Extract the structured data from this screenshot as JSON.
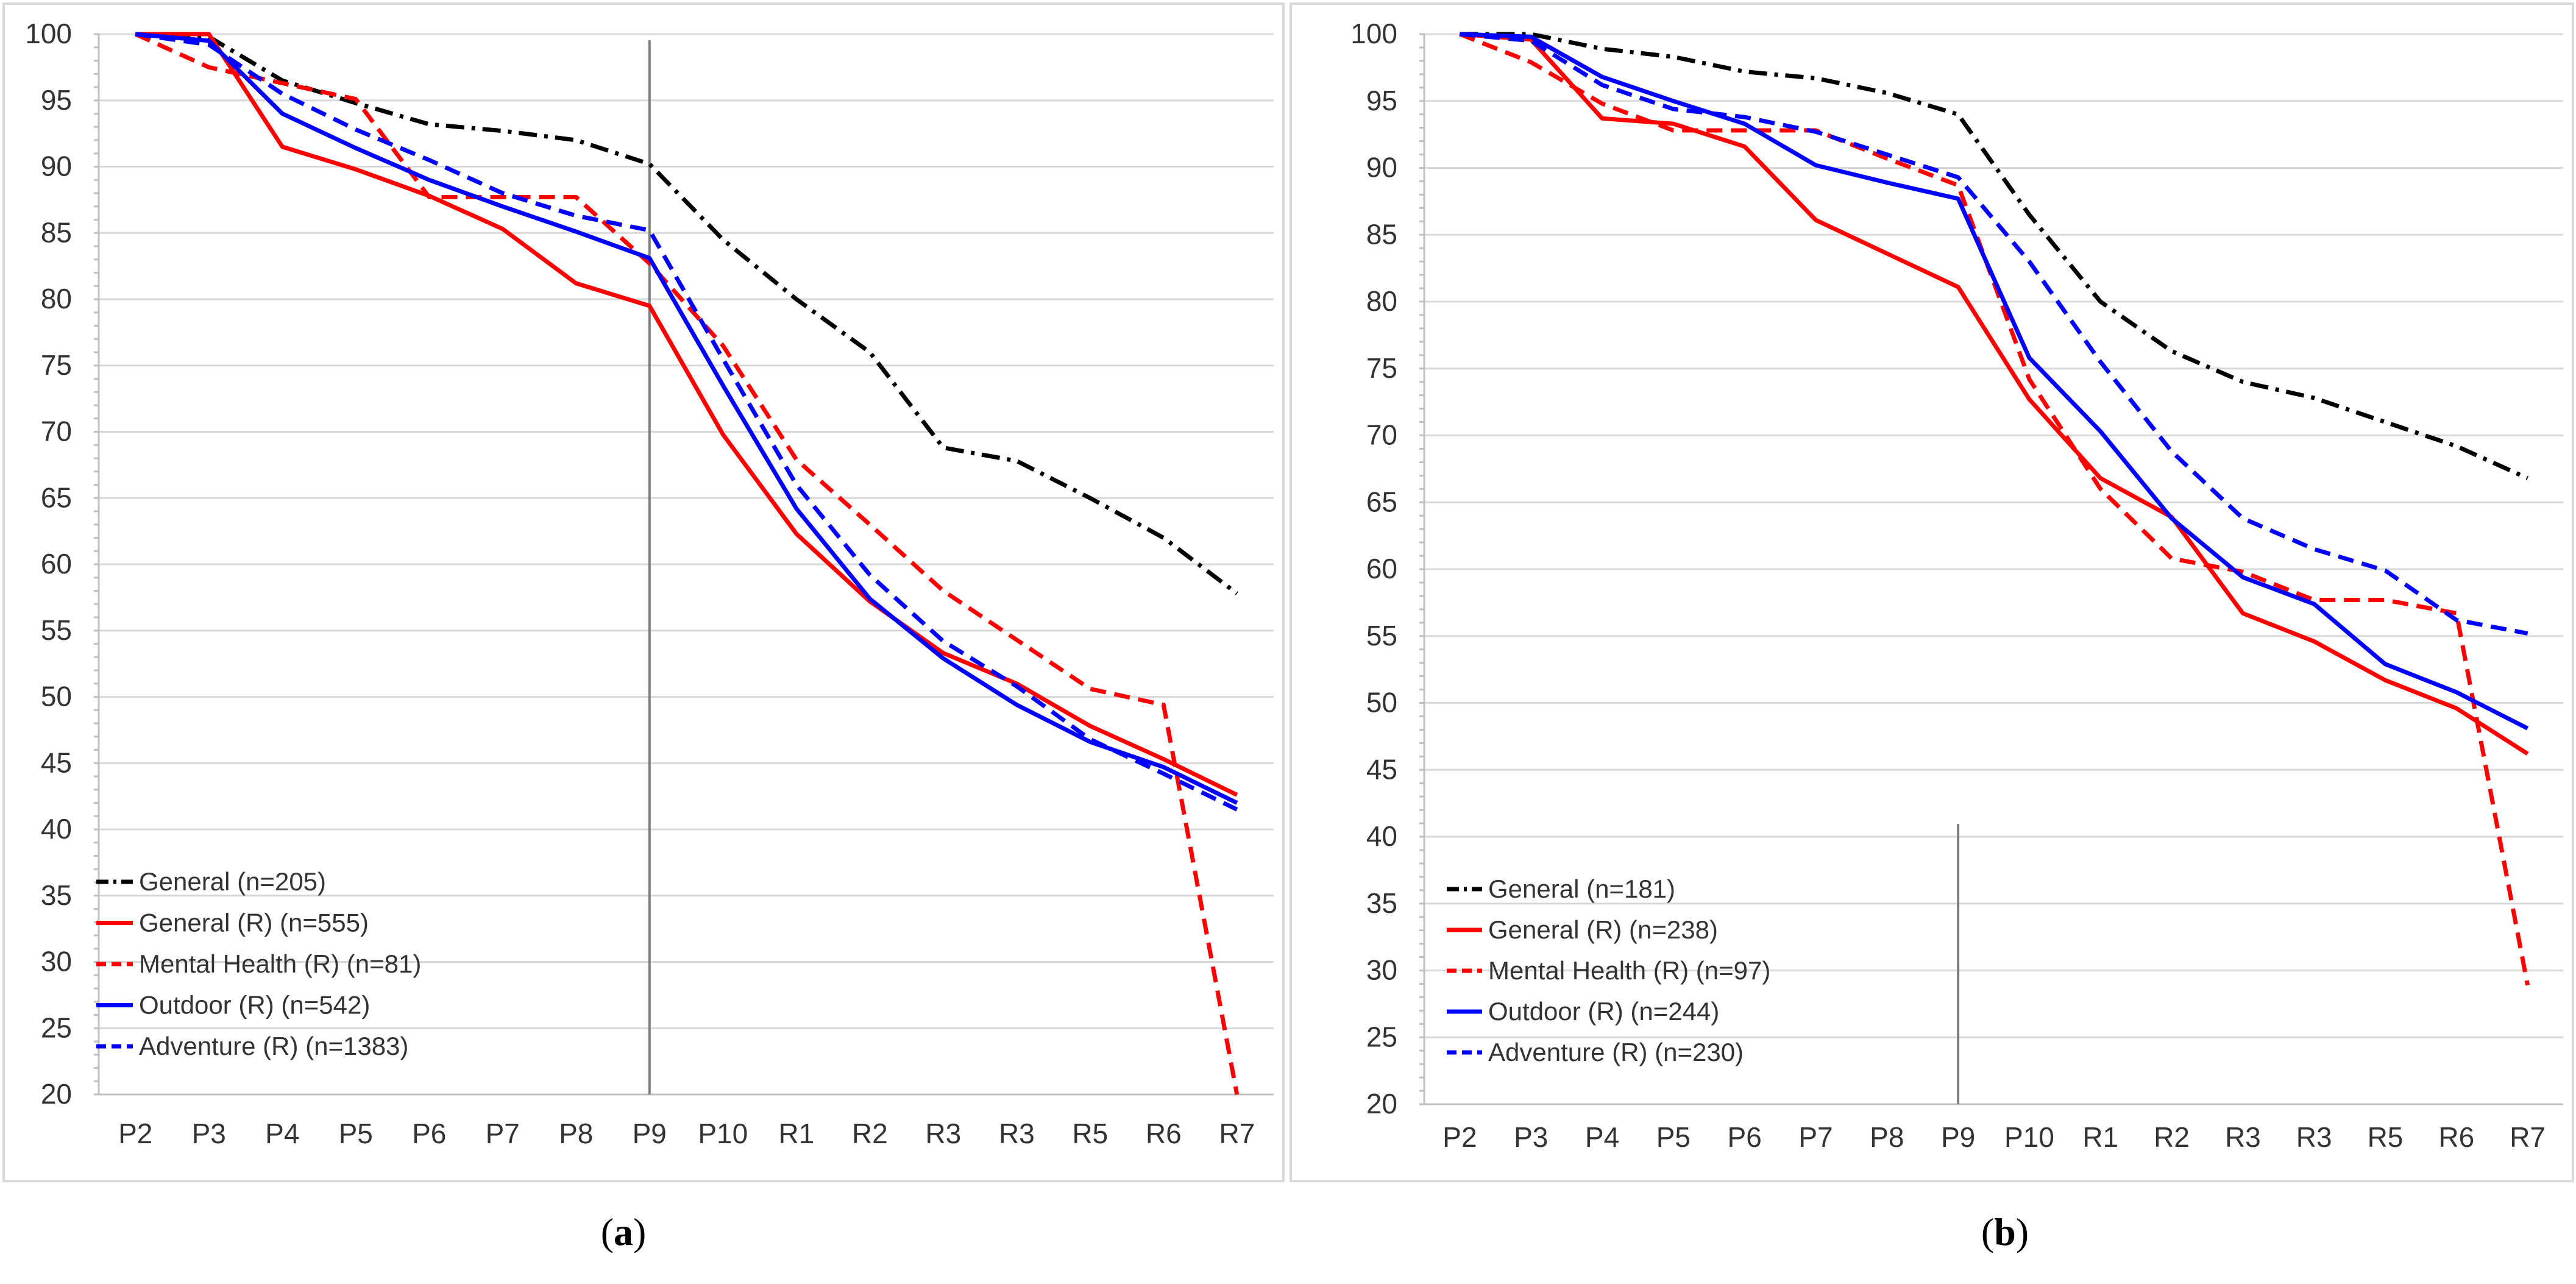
{
  "colors": {
    "black": "#000000",
    "red": "#ff0000",
    "blue": "#0000ff"
  },
  "chart_data": [
    {
      "type": "line",
      "panel_label": "a",
      "categories": [
        "P2",
        "P3",
        "P4",
        "P5",
        "P6",
        "P7",
        "P8",
        "P9",
        "P10",
        "R1",
        "R2",
        "R3",
        "R3",
        "R5",
        "R6",
        "R7"
      ],
      "ylim": [
        20,
        100
      ],
      "yticks": [
        20,
        25,
        30,
        35,
        40,
        45,
        50,
        55,
        60,
        65,
        70,
        75,
        80,
        85,
        90,
        95,
        100
      ],
      "vertical_marker_category_index": 7,
      "legend_position": "lower-left",
      "series": [
        {
          "name": "General (n=205)",
          "color": "#000000",
          "dash": "dashdot",
          "values": [
            100,
            99.8,
            96.5,
            94.8,
            93.2,
            92.7,
            92.0,
            90.2,
            84.5,
            80.0,
            76.0,
            68.8,
            67.8,
            65.0,
            62.0,
            57.8
          ]
        },
        {
          "name": "General (R)  (n=555)",
          "color": "#ff0000",
          "dash": "solid",
          "values": [
            100,
            100,
            91.5,
            89.8,
            87.8,
            85.3,
            81.2,
            79.5,
            69.8,
            62.3,
            57.2,
            53.3,
            51.0,
            47.8,
            45.3,
            42.6
          ]
        },
        {
          "name": "Mental Health (R)  (n=81)",
          "color": "#ff0000",
          "dash": "dashed",
          "values": [
            100,
            97.5,
            96.3,
            95.1,
            87.7,
            87.7,
            87.7,
            82.7,
            76.5,
            67.9,
            63.0,
            58.0,
            54.3,
            50.6,
            49.4,
            19.8
          ]
        },
        {
          "name": "Outdoor (R)  (n=542)",
          "color": "#0000ff",
          "dash": "solid",
          "values": [
            100,
            99.5,
            94.0,
            91.4,
            89.0,
            87.0,
            85.1,
            83.1,
            73.5,
            64.2,
            57.4,
            52.9,
            49.4,
            46.6,
            44.7,
            42.0
          ]
        },
        {
          "name": "Adventure (R)  (n=1383)",
          "color": "#0000ff",
          "dash": "dashed",
          "values": [
            100,
            99.2,
            95.5,
            92.8,
            90.5,
            88.0,
            86.3,
            85.2,
            75.5,
            66.0,
            59.2,
            54.2,
            50.8,
            46.8,
            44.2,
            41.5
          ]
        }
      ]
    },
    {
      "type": "line",
      "panel_label": "b",
      "categories": [
        "P2",
        "P3",
        "P4",
        "P5",
        "P6",
        "P7",
        "P8",
        "P9",
        "P10",
        "R1",
        "R2",
        "R3",
        "R3",
        "R5",
        "R6",
        "R7"
      ],
      "ylim": [
        20,
        100
      ],
      "yticks": [
        20,
        25,
        30,
        35,
        40,
        45,
        50,
        55,
        60,
        65,
        70,
        75,
        80,
        85,
        90,
        95,
        100
      ],
      "vertical_marker_category_index": 7,
      "legend_position": "lower-left",
      "series": [
        {
          "name": "General (n=181)",
          "color": "#000000",
          "dash": "dashdot",
          "values": [
            100,
            100,
            98.9,
            98.3,
            97.2,
            96.7,
            95.6,
            94.0,
            86.5,
            80.0,
            76.3,
            74.0,
            72.8,
            71.0,
            69.2,
            66.8
          ]
        },
        {
          "name": "General (R)  (n=238)",
          "color": "#ff0000",
          "dash": "solid",
          "values": [
            100,
            99.6,
            93.7,
            93.3,
            91.6,
            86.1,
            83.6,
            81.1,
            72.7,
            66.8,
            63.9,
            56.7,
            54.6,
            51.7,
            49.6,
            46.2
          ]
        },
        {
          "name": "Mental Health (R)  (n=97)",
          "color": "#ff0000",
          "dash": "dashed",
          "values": [
            100,
            97.9,
            94.8,
            92.8,
            92.8,
            92.8,
            90.7,
            88.7,
            74.2,
            66.0,
            60.8,
            59.8,
            57.7,
            57.7,
            56.7,
            28.9
          ]
        },
        {
          "name": "Outdoor (R)  (n=244)",
          "color": "#0000ff",
          "dash": "solid",
          "values": [
            100,
            99.8,
            96.8,
            95.0,
            93.3,
            90.2,
            88.9,
            87.7,
            75.8,
            70.3,
            63.8,
            59.4,
            57.4,
            52.9,
            50.8,
            48.1
          ]
        },
        {
          "name": "Adventure (R)  (n=230)",
          "color": "#0000ff",
          "dash": "dashed",
          "values": [
            100,
            99.5,
            96.2,
            94.4,
            93.8,
            92.7,
            91.0,
            89.3,
            83.0,
            75.5,
            68.8,
            63.8,
            61.5,
            59.9,
            56.2,
            55.2
          ]
        }
      ]
    }
  ]
}
